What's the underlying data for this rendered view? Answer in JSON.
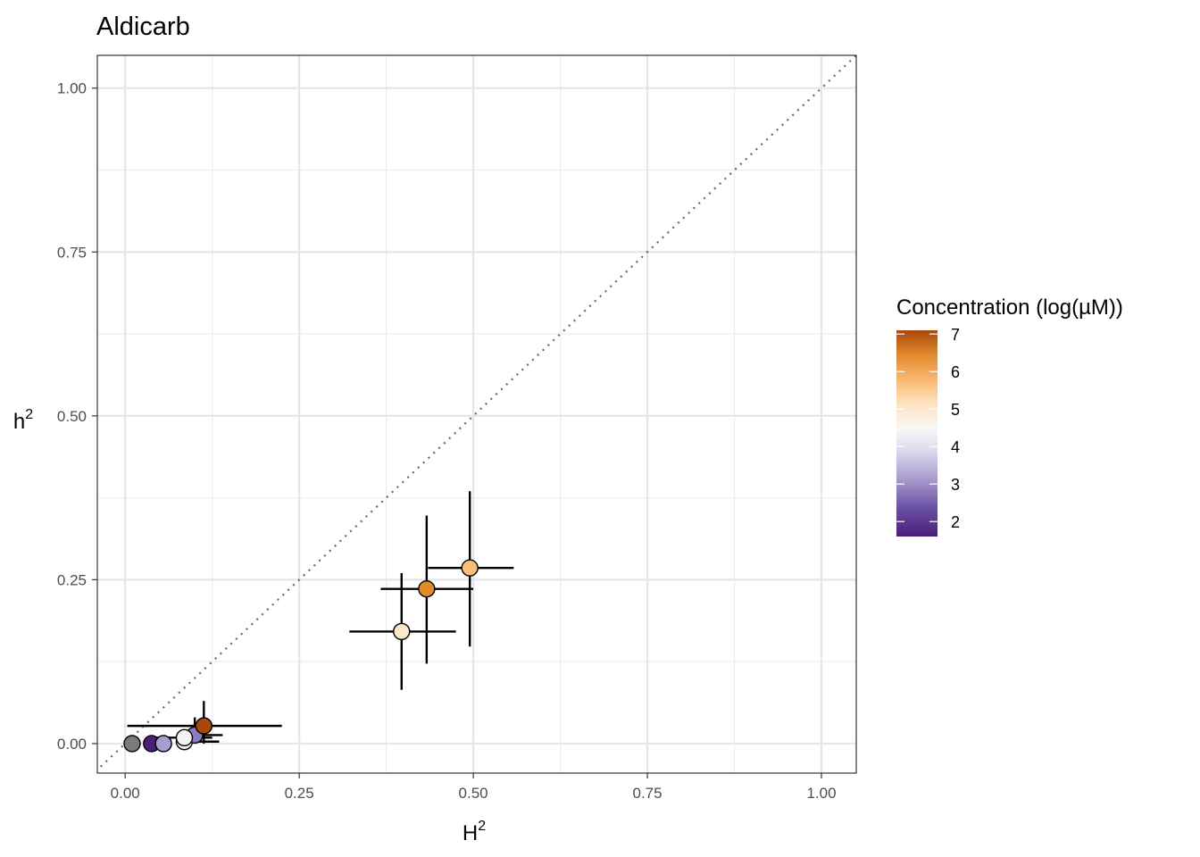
{
  "chart_data": {
    "type": "scatter",
    "title": "Aldicarb",
    "xlabel": "H",
    "xlabel_sup": "2",
    "ylabel": "h",
    "ylabel_sup": "2",
    "xlim": [
      -0.04,
      1.05
    ],
    "ylim": [
      -0.045,
      1.05
    ],
    "x_ticks": [
      0,
      0.25,
      0.5,
      0.75,
      1
    ],
    "x_tick_labels": [
      "0.00",
      "0.25",
      "0.50",
      "0.75",
      "1.00"
    ],
    "y_ticks": [
      0,
      0.25,
      0.5,
      0.75,
      1
    ],
    "y_tick_labels": [
      "0.00",
      "0.25",
      "0.50",
      "0.75",
      "1.00"
    ],
    "grid": true,
    "reference_line": {
      "slope": 1,
      "intercept": 0,
      "style": "dotted",
      "color": "#666666"
    },
    "legend": {
      "title": "Concentration (log(µM))",
      "position": "right",
      "range": [
        1.6,
        7.1
      ],
      "ticks": [
        2,
        3,
        4,
        5,
        6,
        7
      ],
      "tick_labels": [
        "2",
        "3",
        "4",
        "5",
        "6",
        "7"
      ],
      "palette": [
        "#4b1e7a",
        "#8c7bbf",
        "#d9d7ec",
        "#f7f7f7",
        "#fddcb0",
        "#f5a24b",
        "#d9751f",
        "#a8480a"
      ]
    },
    "points": [
      {
        "x": 0.01,
        "y": 0.0,
        "xerr": [
          0.01,
          0.01
        ],
        "yerr": [
          0.0,
          0.0
        ],
        "conc": null,
        "color": "#7a7a7a"
      },
      {
        "x": 0.038,
        "y": 0.0,
        "xerr": [
          0.038,
          0.038
        ],
        "yerr": [
          0.0,
          0.0
        ],
        "conc": 1.8,
        "color": "#4b1e7a"
      },
      {
        "x": 0.055,
        "y": 0.0,
        "xerr": [
          0.055,
          0.055
        ],
        "yerr": [
          0.0,
          0.0
        ],
        "conc": 2.9,
        "color": "#a99ccf"
      },
      {
        "x": 0.085,
        "y": 0.003,
        "xerr": [
          0.085,
          0.135
        ],
        "yerr": [
          0.003,
          0.003
        ],
        "conc": 4.0,
        "color": "#f2f2f2"
      },
      {
        "x": 0.1,
        "y": 0.013,
        "xerr": [
          0.1,
          0.14
        ],
        "yerr": [
          0.013,
          0.04
        ],
        "conc": 2.6,
        "color": "#8c7bbf"
      },
      {
        "x": 0.085,
        "y": 0.009,
        "xerr": [
          0.045,
          0.125
        ],
        "yerr": [
          0.009,
          0.01
        ],
        "conc": 4.2,
        "color": "#f4f4f8"
      },
      {
        "x": 0.113,
        "y": 0.027,
        "xerr": [
          0.003,
          0.225
        ],
        "yerr": [
          0.0,
          0.065
        ],
        "conc": 7.0,
        "color": "#a8480a"
      },
      {
        "x": 0.397,
        "y": 0.171,
        "xerr": [
          0.322,
          0.475
        ],
        "yerr": [
          0.082,
          0.26
        ],
        "conc": 5.1,
        "color": "#fde8cc"
      },
      {
        "x": 0.433,
        "y": 0.236,
        "xerr": [
          0.367,
          0.5
        ],
        "yerr": [
          0.122,
          0.348
        ],
        "conc": 6.3,
        "color": "#e08a2c"
      },
      {
        "x": 0.495,
        "y": 0.268,
        "xerr": [
          0.435,
          0.558
        ],
        "yerr": [
          0.148,
          0.385
        ],
        "conc": 5.7,
        "color": "#fbbf7a"
      }
    ]
  }
}
